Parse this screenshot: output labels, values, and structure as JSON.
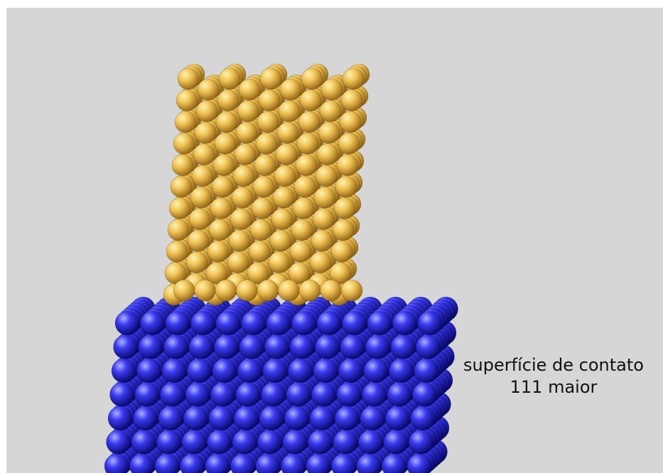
{
  "caption": {
    "line1": "superfície de contato",
    "line2": "111 maior"
  },
  "atoms": {
    "upper_crystal": {
      "color": "#e8b446",
      "icon": "gold-sphere-icon"
    },
    "lower_crystal": {
      "color": "#2c2ad6",
      "icon": "blue-sphere-icon"
    }
  },
  "background_color": "#d6d6d6"
}
